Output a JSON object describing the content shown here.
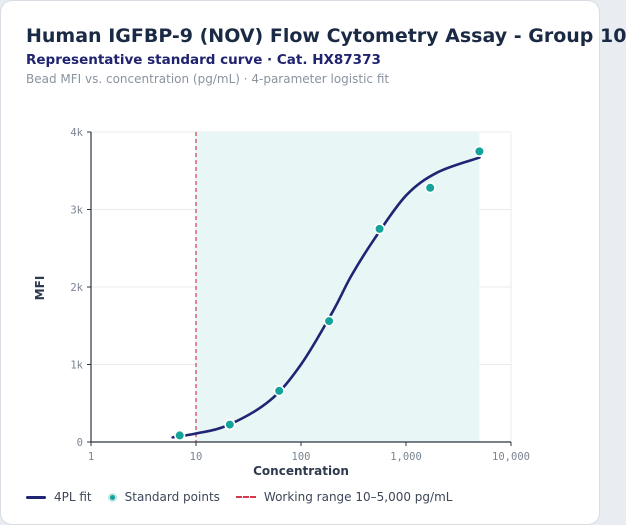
{
  "header": {
    "title": "Human IGFBP-9 (NOV) Flow Cytometry Assay - Group 10",
    "subtitle": "Representative standard curve · Cat. HX87373",
    "caption": "Bead MFI vs. concentration (pg/mL) · 4-parameter logistic fit"
  },
  "colors": {
    "curve": "#1f2473",
    "points": "#14a39a",
    "working_range_line": "#d43a4e",
    "working_range_fill": "#e8f6f6"
  },
  "chart_data": {
    "type": "scatter",
    "x_scale": "log",
    "xlabel": "Concentration",
    "ylabel": "MFI",
    "xlim": [
      1,
      10000
    ],
    "ylim": [
      0,
      4000
    ],
    "x_ticks": [
      1,
      10,
      100,
      1000,
      10000
    ],
    "x_tick_labels": [
      "1",
      "10",
      "100",
      "1,000",
      "10,000"
    ],
    "y_ticks": [
      0,
      1000,
      2000,
      3000,
      4000
    ],
    "y_tick_labels": [
      "0",
      "1k",
      "2k",
      "3k",
      "4k"
    ],
    "grid": true,
    "legend_position": "bottom",
    "series": [
      {
        "name": "Standard points",
        "kind": "points",
        "x": [
          7,
          21,
          62,
          185,
          560,
          1700,
          5000
        ],
        "y": [
          85,
          225,
          660,
          1560,
          2750,
          3280,
          3750
        ]
      },
      {
        "name": "4PL fit",
        "kind": "curve",
        "x": [
          6,
          10,
          20,
          50,
          100,
          200,
          300,
          500,
          1000,
          2000,
          5000
        ],
        "y": [
          60,
          110,
          215,
          530,
          1000,
          1680,
          2140,
          2620,
          3180,
          3480,
          3670
        ]
      }
    ],
    "working_range": {
      "name": "Working range 10–5,000 pg/mL",
      "x": [
        10,
        5000
      ]
    }
  },
  "legend": {
    "fit_label": "4PL fit",
    "points_label": "Standard points",
    "range_label": "Working range 10–5,000 pg/mL"
  }
}
